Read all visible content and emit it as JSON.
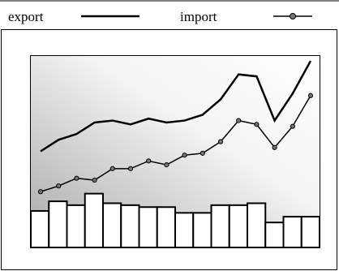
{
  "chart_data": {
    "type": "line",
    "categories": [
      null,
      null,
      null,
      null,
      null,
      null,
      null,
      null,
      null,
      null,
      null,
      null,
      null,
      null,
      null,
      null
    ],
    "series": [
      {
        "name": "export",
        "color": "#000000",
        "marker": false,
        "values": [
          50,
          56,
          59,
          65,
          66,
          64,
          67,
          65,
          66,
          69,
          77,
          90,
          89,
          66,
          80,
          97
        ]
      },
      {
        "name": "import",
        "color": "#000000",
        "marker": true,
        "values": [
          29,
          32,
          36,
          35,
          41,
          41,
          45,
          43,
          48,
          49,
          55,
          66,
          64,
          52,
          63,
          79
        ]
      },
      {
        "type": "bar",
        "color": "#ffffff",
        "values": [
          19,
          24,
          22,
          28,
          23,
          22,
          21,
          21,
          18,
          18,
          22,
          22,
          23,
          13,
          16,
          16
        ]
      }
    ],
    "ylim": [
      0,
      100
    ],
    "legend": "top"
  }
}
